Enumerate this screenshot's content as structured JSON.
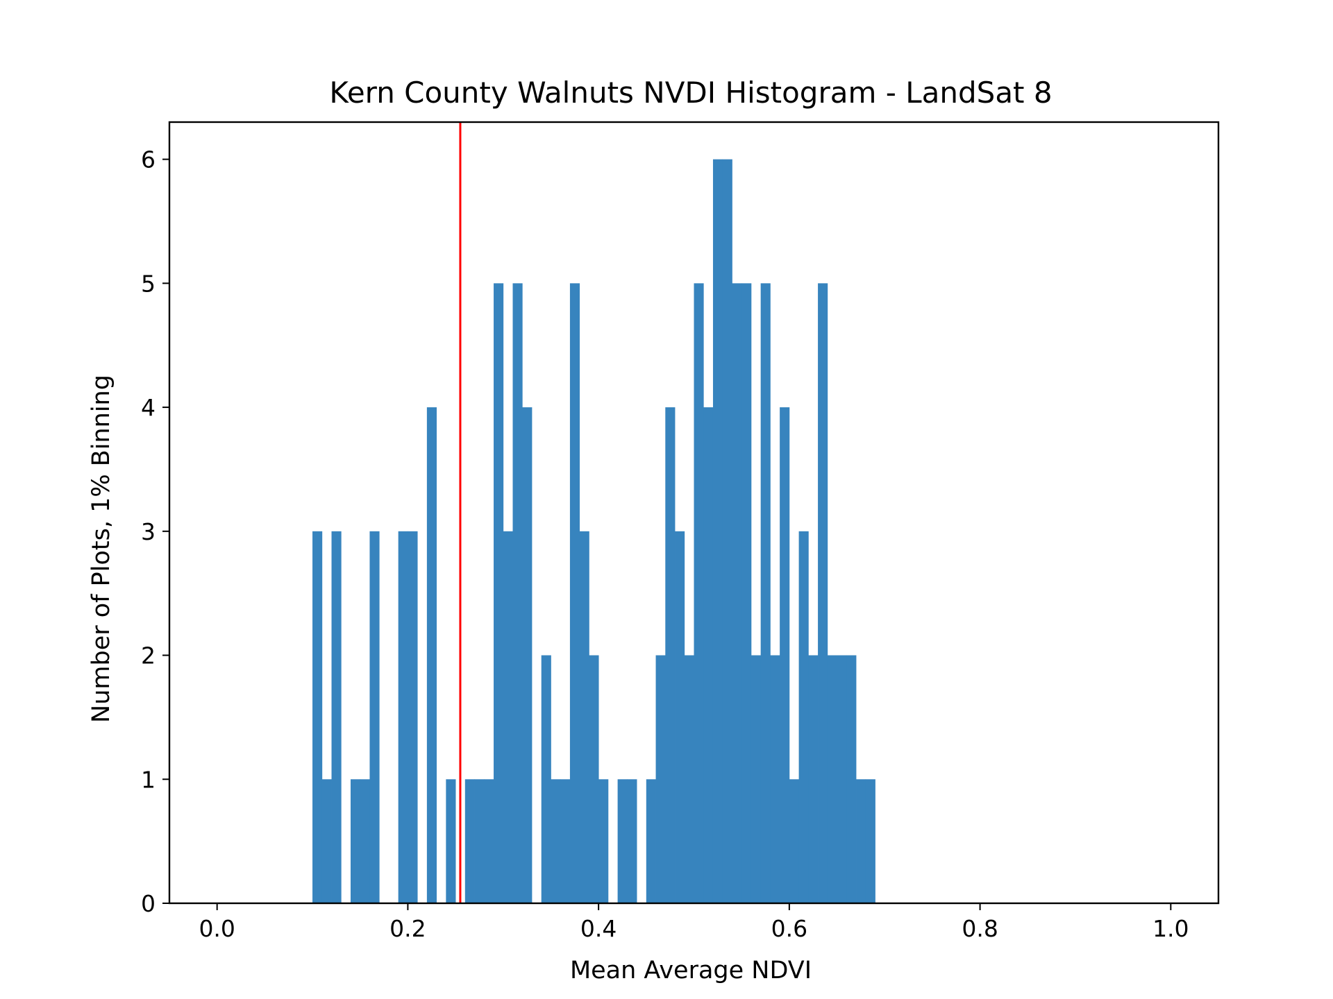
{
  "chart_data": {
    "type": "bar",
    "title": "Kern County Walnuts NVDI Histogram - LandSat 8",
    "xlabel": "Mean Average NDVI",
    "ylabel": "Number of Plots, 1% Binning",
    "xlim": [
      -0.05,
      1.05
    ],
    "ylim": [
      0,
      6.3
    ],
    "xticks": [
      "0.0",
      "0.2",
      "0.4",
      "0.6",
      "0.8",
      "1.0"
    ],
    "yticks": [
      "0",
      "1",
      "2",
      "3",
      "4",
      "5",
      "6"
    ],
    "bin_width": 0.01,
    "bin_starts": [
      0.1,
      0.11,
      0.12,
      0.13,
      0.14,
      0.15,
      0.16,
      0.17,
      0.18,
      0.19,
      0.2,
      0.21,
      0.22,
      0.23,
      0.24,
      0.25,
      0.26,
      0.27,
      0.28,
      0.29,
      0.3,
      0.31,
      0.32,
      0.33,
      0.34,
      0.35,
      0.36,
      0.37,
      0.38,
      0.39,
      0.4,
      0.41,
      0.42,
      0.43,
      0.44,
      0.45,
      0.46,
      0.47,
      0.48,
      0.49,
      0.5,
      0.51,
      0.52,
      0.53,
      0.54,
      0.55,
      0.56,
      0.57,
      0.58,
      0.59,
      0.6,
      0.61,
      0.62,
      0.63,
      0.64,
      0.65,
      0.66,
      0.67,
      0.68,
      0.69
    ],
    "values": [
      3,
      1,
      3,
      0,
      1,
      1,
      3,
      0,
      0,
      3,
      3,
      0,
      4,
      0,
      1,
      0,
      1,
      1,
      1,
      5,
      3,
      5,
      4,
      0,
      2,
      1,
      1,
      5,
      3,
      2,
      1,
      0,
      1,
      1,
      0,
      1,
      2,
      4,
      3,
      2,
      5,
      4,
      6,
      6,
      5,
      5,
      2,
      5,
      2,
      4,
      1,
      3,
      2,
      5,
      2,
      2,
      2,
      1,
      1,
      0
    ],
    "bar_color": "#3784be",
    "reference_line": {
      "x": 0.255,
      "color": "#ff0000"
    },
    "grid": false
  }
}
